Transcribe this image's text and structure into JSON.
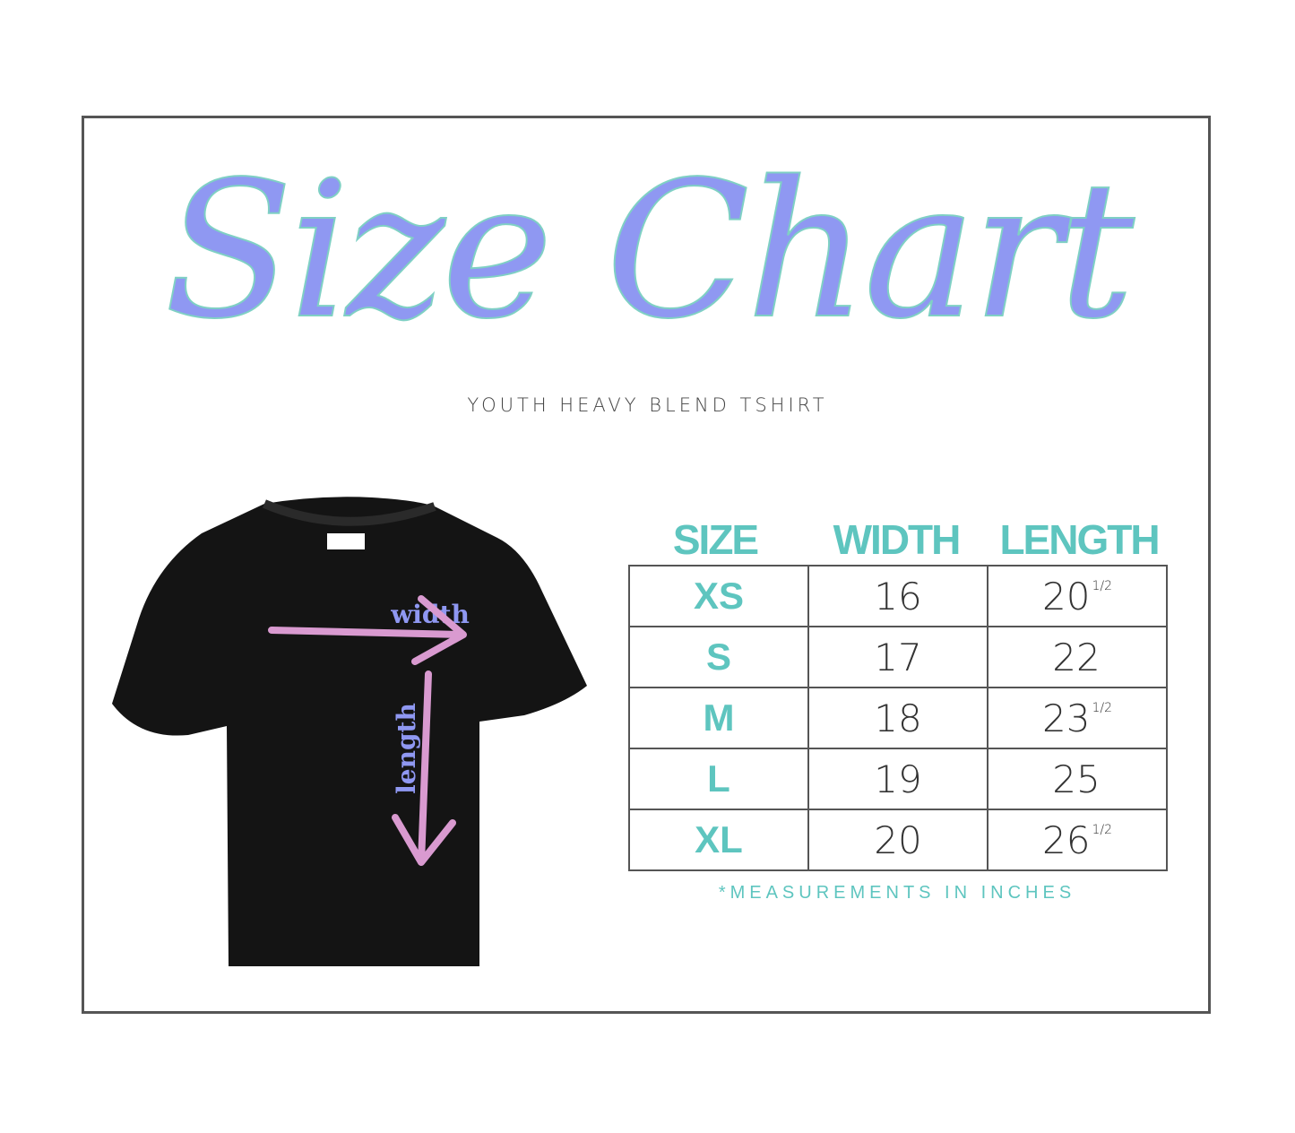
{
  "title": "Size Chart",
  "subtitle": "YOUTH HEAVY BLEND TSHIRT",
  "diagram": {
    "width_label": "width",
    "length_label": "length",
    "label_color": "#8f98f2",
    "arrow_color": "#d99ad0"
  },
  "table": {
    "headers": [
      "SIZE",
      "WIDTH",
      "LENGTH"
    ],
    "rows": [
      {
        "size": "XS",
        "width": "16",
        "length": "20",
        "length_fraction": "1/2"
      },
      {
        "size": "S",
        "width": "17",
        "length": "22",
        "length_fraction": ""
      },
      {
        "size": "M",
        "width": "18",
        "length": "23",
        "length_fraction": "1/2"
      },
      {
        "size": "L",
        "width": "19",
        "length": "25",
        "length_fraction": ""
      },
      {
        "size": "XL",
        "width": "20",
        "length": "26",
        "length_fraction": "1/2"
      }
    ],
    "accent_color": "#5ec5bf"
  },
  "note": "*MEASUREMENTS IN INCHES"
}
